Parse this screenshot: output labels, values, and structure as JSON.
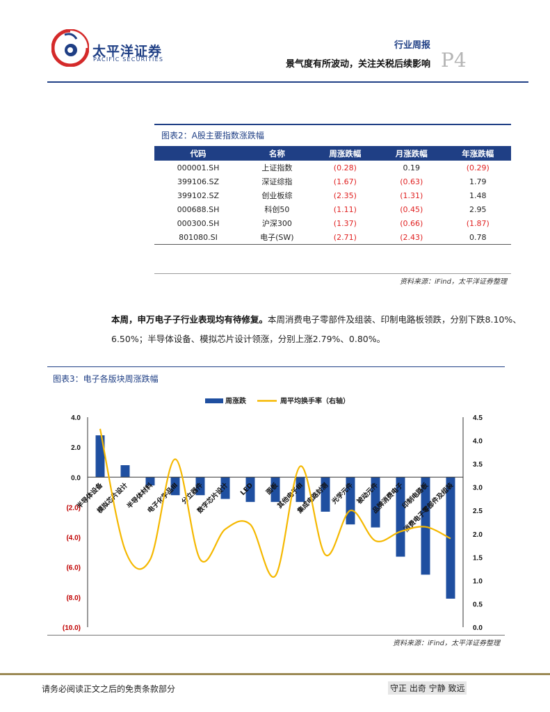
{
  "header": {
    "brand_cn": "太平洋证券",
    "brand_en": "PACIFIC SECURITIES",
    "report_type": "行业周报",
    "headline": "景气度有所波动，关注关税后续影响",
    "page_number": "P4"
  },
  "table_figure": {
    "title": "图表2：A股主要指数涨跌幅",
    "columns": [
      "代码",
      "名称",
      "周涨跌幅",
      "月涨跌幅",
      "年涨跌幅"
    ],
    "rows": [
      {
        "code": "000001.SH",
        "name": "上证指数",
        "week": "(0.28)",
        "month": "0.19",
        "year": "(0.29)"
      },
      {
        "code": "399106.SZ",
        "name": "深证综指",
        "week": "(1.67)",
        "month": "(0.63)",
        "year": "1.79"
      },
      {
        "code": "399102.SZ",
        "name": "创业板综",
        "week": "(2.35)",
        "month": "(1.31)",
        "year": "1.48"
      },
      {
        "code": "000688.SH",
        "name": "科创50",
        "week": "(1.11)",
        "month": "(0.45)",
        "year": "2.95"
      },
      {
        "code": "000300.SH",
        "name": "沪深300",
        "week": "(1.37)",
        "month": "(0.66)",
        "year": "(1.87)"
      },
      {
        "code": "801080.SI",
        "name": "电子(SW)",
        "week": "(2.71)",
        "month": "(2.43)",
        "year": "0.78"
      }
    ],
    "negative_color": "#e02020",
    "source": "资料来源：iFind，太平洋证券整理"
  },
  "paragraph": {
    "lead": "本周，申万电子子行业表现均有待修复。",
    "body": "本周消费电子零部件及组装、印制电路板领跌，分别下跌8.10%、6.50%；半导体设备、模拟芯片设计领涨，分别上涨2.79%、0.80%。"
  },
  "chart_figure": {
    "title": "图表3：电子各版块周涨跌幅",
    "source": "资料来源：iFind，太平洋证券整理"
  },
  "chart_data": {
    "type": "bar",
    "title": "图表3：电子各版块周涨跌幅",
    "categories": [
      "半导体设备",
      "模拟芯片设计",
      "半导体材料",
      "电子化学品Ⅲ",
      "分立器件",
      "数字芯片设计",
      "LED",
      "面板",
      "其他电子Ⅲ",
      "集成电路封测",
      "光学元件",
      "被动元件",
      "品牌消费电子",
      "印制电路板",
      "消费电子零部件及组装"
    ],
    "series": [
      {
        "name": "周涨跌",
        "axis": "left",
        "kind": "bar",
        "color": "#1f4fa0",
        "values": [
          2.79,
          0.8,
          -0.55,
          -1.2,
          -1.2,
          -1.45,
          -1.65,
          -1.65,
          -1.65,
          -2.3,
          -3.15,
          -3.35,
          -5.3,
          -6.5,
          -8.1
        ]
      },
      {
        "name": "周平均换手率（右轴）",
        "axis": "right",
        "kind": "line",
        "color": "#f5b800",
        "values": [
          4.25,
          1.65,
          1.45,
          3.6,
          1.45,
          2.1,
          2.2,
          1.1,
          3.45,
          1.55,
          2.5,
          1.85,
          2.05,
          2.15,
          1.9
        ]
      }
    ],
    "y_left": {
      "min": -10,
      "max": 4,
      "ticks": [
        "4.0",
        "2.0",
        "0.0",
        "(2.0)",
        "(4.0)",
        "(6.0)",
        "(8.0)",
        "(10.0)"
      ],
      "tick_values": [
        4,
        2,
        0,
        -2,
        -4,
        -6,
        -8,
        -10
      ]
    },
    "y_right": {
      "min": 0,
      "max": 4.5,
      "ticks": [
        "4.5",
        "4.0",
        "3.5",
        "3.0",
        "2.5",
        "2.0",
        "1.5",
        "1.0",
        "0.5",
        "0.0"
      ],
      "tick_values": [
        4.5,
        4.0,
        3.5,
        3.0,
        2.5,
        2.0,
        1.5,
        1.0,
        0.5,
        0.0
      ]
    },
    "axis_label_color": "#c00000",
    "legend_position": "top-center"
  },
  "footer": {
    "disclaimer": "请务必阅读正文之后的免责条款部分",
    "motto": "守正 出奇 宁静 致远"
  }
}
